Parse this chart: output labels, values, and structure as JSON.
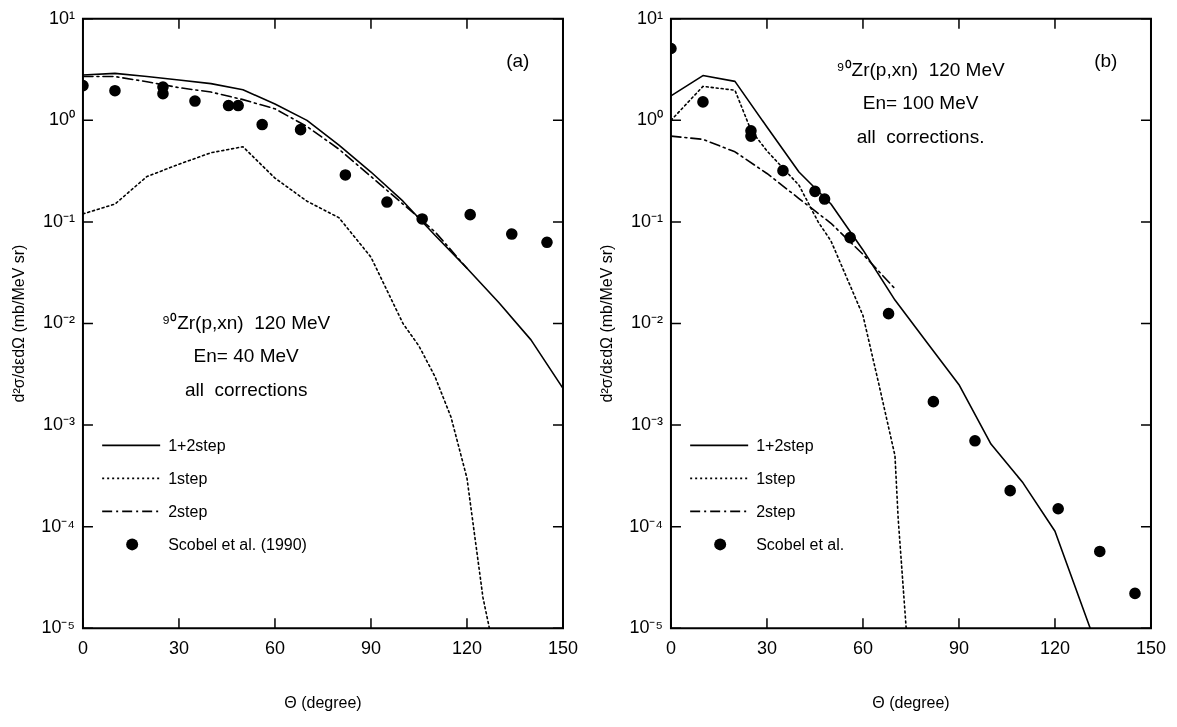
{
  "chart_data": [
    {
      "type": "line",
      "xlabel": "Θ (degree)",
      "ylabel": "d²σ/dεdΩ (mb/MeV sr)",
      "log": "y",
      "legend": "bottom left",
      "grid": false,
      "annotations": [
        "(a)",
        "⁹⁰Zr(p,xn)  120 MeV",
        "En= 40 MeV",
        "all  corrections"
      ],
      "xlim": [
        0,
        150
      ],
      "xticks": [
        0,
        30,
        60,
        90,
        120,
        150
      ],
      "ylim": [
        1e-05,
        10
      ],
      "yticks": [
        {
          "value": 1e-05,
          "label": "10⁻⁵"
        },
        {
          "value": 0.0001,
          "label": "10⁻⁴"
        },
        {
          "value": 0.001,
          "label": "10⁻³"
        },
        {
          "value": 0.01,
          "label": "10⁻²"
        },
        {
          "value": 0.1,
          "label": "10⁻¹"
        },
        {
          "value": 1,
          "label": "10⁰"
        },
        {
          "value": 10,
          "label": "10¹"
        }
      ],
      "series": [
        {
          "name": "1+2step",
          "type": "line",
          "line_style": "solid",
          "marker": "none",
          "color": "#000000",
          "x": [
            0,
            10,
            20,
            30,
            40,
            50,
            60,
            70,
            80,
            90,
            100,
            110,
            120,
            130,
            140,
            150
          ],
          "values": [
            2.8,
            2.9,
            2.7,
            2.5,
            2.3,
            2.0,
            1.45,
            1.0,
            0.57,
            0.31,
            0.16,
            0.074,
            0.035,
            0.016,
            0.0069,
            0.0023
          ]
        },
        {
          "name": "1step",
          "type": "line",
          "line_style": "dotted",
          "marker": "none",
          "color": "#000000",
          "x": [
            0,
            10,
            20,
            30,
            40,
            50,
            60,
            70,
            80,
            90,
            100,
            105,
            110,
            115,
            120,
            125,
            127
          ],
          "values": [
            0.12,
            0.15,
            0.28,
            0.37,
            0.48,
            0.55,
            0.27,
            0.16,
            0.11,
            0.045,
            0.01,
            0.006,
            0.003,
            0.0012,
            0.0003,
            2e-05,
            1e-05
          ]
        },
        {
          "name": "2step",
          "type": "line",
          "line_style": "dashed",
          "marker": "none",
          "color": "#000000",
          "x": [
            0,
            10,
            20,
            30,
            40,
            50,
            60,
            70,
            80,
            90,
            100,
            110,
            120
          ],
          "values": [
            2.7,
            2.7,
            2.4,
            2.1,
            1.9,
            1.6,
            1.3,
            0.87,
            0.52,
            0.28,
            0.15,
            0.08,
            0.035
          ]
        },
        {
          "name": "Scobel et al. (1990)",
          "type": "scatter",
          "marker": "circle",
          "color": "#000000",
          "x": [
            0,
            10,
            25,
            25,
            35,
            45.5,
            48.5,
            56,
            68,
            82,
            95,
            106,
            121,
            134,
            145
          ],
          "values": [
            2.2,
            1.96,
            2.13,
            1.83,
            1.55,
            1.4,
            1.4,
            0.91,
            0.81,
            0.29,
            0.157,
            0.107,
            0.118,
            0.076,
            0.063
          ]
        }
      ]
    },
    {
      "type": "line",
      "xlabel": "Θ (degree)",
      "ylabel": "d²σ/dεdΩ (mb/MeV sr)",
      "log": "y",
      "legend": "bottom left",
      "grid": false,
      "annotations": [
        "(b)",
        "⁹⁰Zr(p,xn)  120 MeV",
        "En= 100 MeV",
        "all  corrections."
      ],
      "xlim": [
        0,
        150
      ],
      "xticks": [
        0,
        30,
        60,
        90,
        120,
        150
      ],
      "ylim": [
        1e-05,
        10
      ],
      "yticks": [
        {
          "value": 1e-05,
          "label": "10⁻⁵"
        },
        {
          "value": 0.0001,
          "label": "10⁻⁴"
        },
        {
          "value": 0.001,
          "label": "10⁻³"
        },
        {
          "value": 0.01,
          "label": "10⁻²"
        },
        {
          "value": 0.1,
          "label": "10⁻¹"
        },
        {
          "value": 1,
          "label": "10⁰"
        },
        {
          "value": 10,
          "label": "10¹"
        }
      ],
      "series": [
        {
          "name": "1+2step",
          "type": "line",
          "line_style": "solid",
          "marker": "none",
          "color": "#000000",
          "x": [
            0,
            10,
            20,
            30,
            40,
            50,
            60,
            70,
            80,
            90,
            100,
            110,
            120,
            131
          ],
          "values": [
            1.74,
            2.76,
            2.42,
            0.86,
            0.31,
            0.15,
            0.053,
            0.017,
            0.0065,
            0.0025,
            0.00065,
            0.00027,
            9e-05,
            1e-05
          ]
        },
        {
          "name": "1step",
          "type": "line",
          "line_style": "dotted",
          "marker": "none",
          "color": "#000000",
          "x": [
            0,
            10,
            20,
            25,
            30,
            40,
            46,
            50,
            60,
            65,
            70,
            71,
            73.5
          ],
          "values": [
            1.0,
            2.16,
            1.98,
            0.8,
            0.5,
            0.23,
            0.1,
            0.065,
            0.012,
            0.0025,
            0.0005,
            0.00012,
            1e-05
          ]
        },
        {
          "name": "2step",
          "type": "line",
          "line_style": "dashed",
          "marker": "none",
          "color": "#000000",
          "x": [
            0,
            10,
            20,
            30,
            40,
            50,
            60,
            70
          ],
          "values": [
            0.7,
            0.65,
            0.49,
            0.3,
            0.17,
            0.097,
            0.048,
            0.022
          ]
        },
        {
          "name": "Scobel et al.",
          "type": "scatter",
          "marker": "circle",
          "color": "#000000",
          "x": [
            0,
            10,
            25,
            25,
            35,
            45,
            48,
            56,
            68,
            82,
            95,
            106,
            121,
            134,
            145
          ],
          "values": [
            5.1,
            1.52,
            0.79,
            0.7,
            0.32,
            0.2,
            0.168,
            0.07,
            0.0125,
            0.0017,
            0.0007,
            0.000226,
            0.00015,
            5.7e-05,
            2.2e-05
          ]
        }
      ]
    }
  ]
}
